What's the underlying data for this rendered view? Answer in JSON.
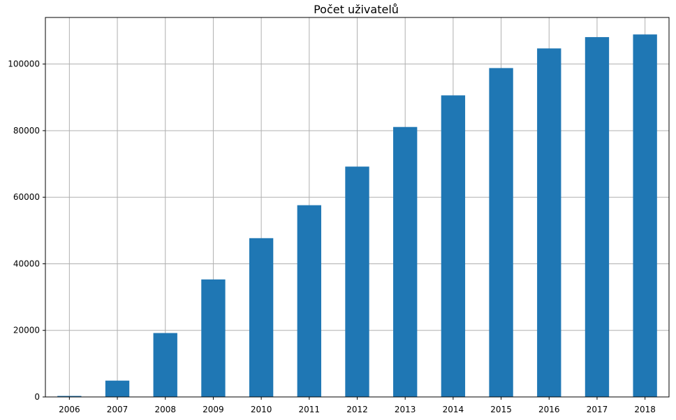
{
  "chart_data": {
    "type": "bar",
    "title": "Počet uživatelů",
    "xlabel": "",
    "ylabel": "",
    "categories": [
      "2006",
      "2007",
      "2008",
      "2009",
      "2010",
      "2011",
      "2012",
      "2013",
      "2014",
      "2015",
      "2016",
      "2017",
      "2018"
    ],
    "values": [
      300,
      4900,
      19200,
      35300,
      47700,
      57600,
      69200,
      81100,
      90600,
      98800,
      104700,
      108100,
      108900
    ],
    "ylim": [
      0,
      114000
    ],
    "yticks": [
      0,
      20000,
      40000,
      60000,
      80000,
      100000
    ],
    "grid": true,
    "bar_color": "#1f77b4",
    "legend": "none"
  }
}
